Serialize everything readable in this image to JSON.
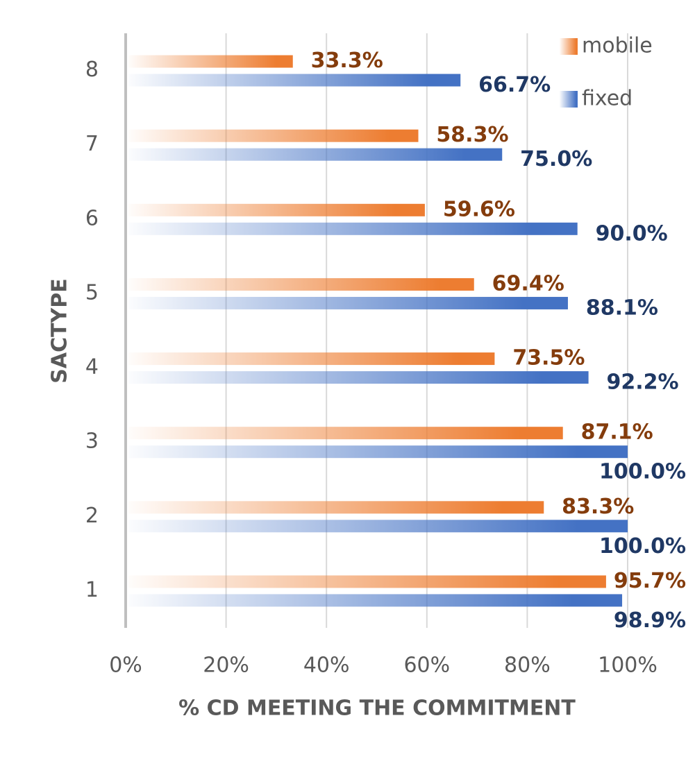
{
  "chart_data": {
    "type": "hbar",
    "xlabel": "% CD MEETING THE COMMITMENT",
    "ylabel": "SACTYPE",
    "categories": [
      "1",
      "2",
      "3",
      "4",
      "5",
      "6",
      "7",
      "8"
    ],
    "series": [
      {
        "name": "mobile",
        "color": "#ed7d31",
        "label_color": "#843c0c",
        "values": [
          95.7,
          83.3,
          87.1,
          73.5,
          69.4,
          59.6,
          58.3,
          33.3
        ],
        "value_labels": [
          "95.7%",
          "83.3%",
          "87.1%",
          "73.5%",
          "69.4%",
          "59.6%",
          "58.3%",
          "33.3%"
        ]
      },
      {
        "name": "fixed",
        "color": "#4472c4",
        "label_color": "#1f3864",
        "values": [
          98.9,
          100,
          100,
          92.2,
          88.1,
          90,
          75,
          66.7
        ],
        "value_labels": [
          "98.9%",
          "100.0%",
          "100.0%",
          "92.2%",
          "88.1%",
          "90.0%",
          "75.0%",
          "66.7%"
        ]
      }
    ],
    "xlim": [
      0,
      100
    ],
    "xticks": [
      {
        "value": 0,
        "label": "0%"
      },
      {
        "value": 20,
        "label": "20%"
      },
      {
        "value": 40,
        "label": "40%"
      },
      {
        "value": 60,
        "label": "60%"
      },
      {
        "value": 80,
        "label": "80%"
      },
      {
        "value": 100,
        "label": "100%"
      }
    ],
    "grid": true,
    "legend": "top-right"
  }
}
